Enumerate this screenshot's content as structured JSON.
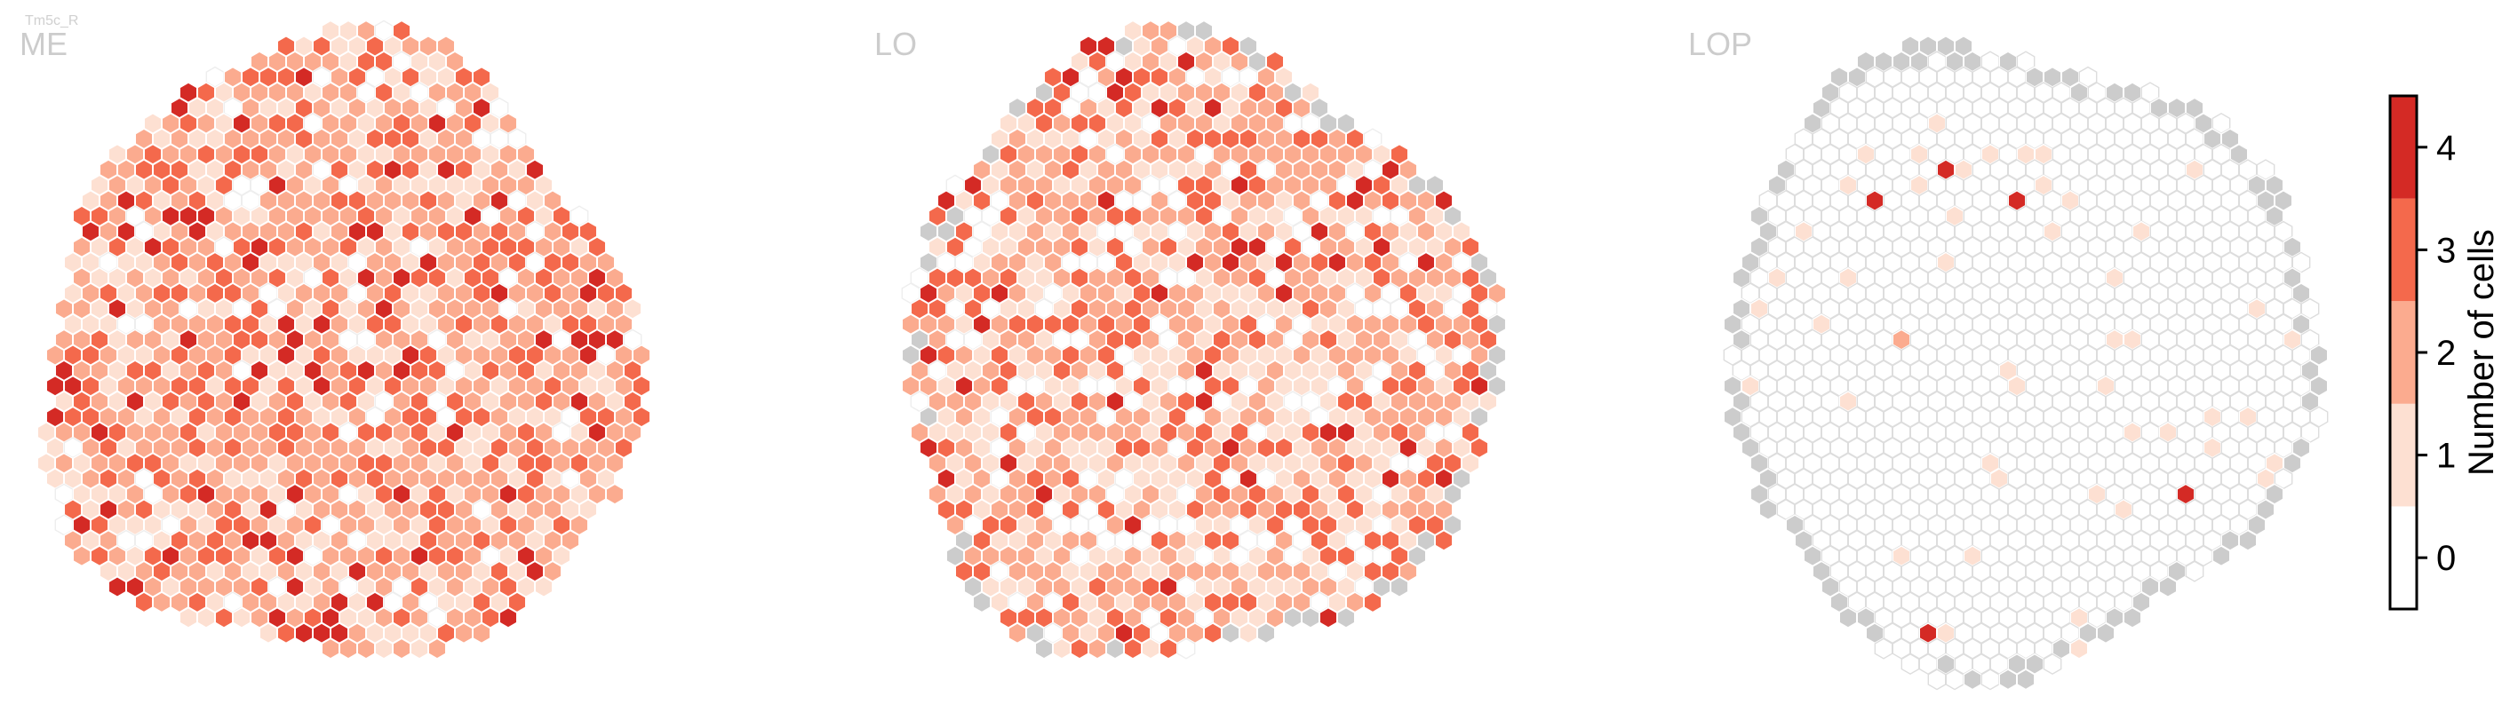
{
  "figure_label": "Tm5c_R",
  "chart_data": {
    "type": "heatmap",
    "subtype": "hexagonal columnar map",
    "panels": [
      {
        "name": "ME",
        "pattern": "dense",
        "value_weights": [
          0.08,
          0.26,
          0.36,
          0.23,
          0.07
        ],
        "nodata_weight": 0.0,
        "frame_gray_edge": false
      },
      {
        "name": "LO",
        "pattern": "medium",
        "value_weights": [
          0.14,
          0.3,
          0.32,
          0.18,
          0.06
        ],
        "nodata_weight": 0.0,
        "frame_gray_edge": true
      },
      {
        "name": "LOP",
        "pattern": "sparse",
        "value_weights": [
          0.93,
          0.06,
          0.005,
          0.0,
          0.005
        ],
        "nodata_weight": 0.0,
        "frame_gray_edge": true
      }
    ],
    "colorbar": {
      "label": "Number of cells",
      "ticks": [
        0,
        1,
        2,
        3,
        4
      ],
      "tick_labels": [
        "0",
        "1",
        "2",
        "3",
        "4"
      ],
      "range": [
        -0.5,
        4.5
      ],
      "colors": [
        "#ffffff",
        "#fde0d2",
        "#fbab8f",
        "#f4694c",
        "#d42a25"
      ]
    },
    "nodata_color": "#cccccc",
    "empty_outline_color": "#dddddd"
  }
}
